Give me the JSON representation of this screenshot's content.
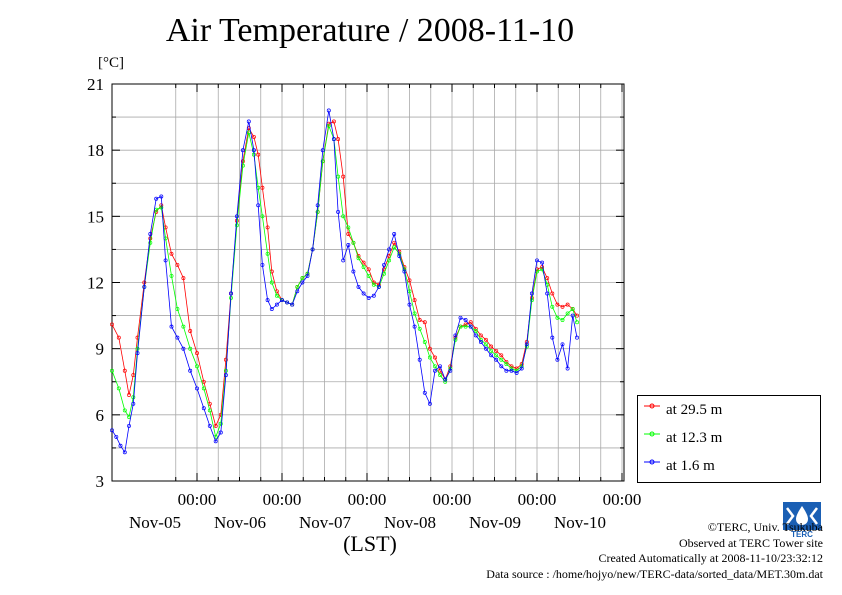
{
  "chart_data": {
    "type": "line",
    "title": "Air Temperature / 2008-11-10",
    "ylabel": "[°C]",
    "xlabel": "(LST)",
    "ylim": [
      3,
      21
    ],
    "yticks": [
      3,
      6,
      9,
      12,
      15,
      18,
      21
    ],
    "xlim": [
      0,
      6
    ],
    "x_unit": "days since Nov-04 18:00",
    "xtick_labels": [
      {
        "top": "00:00",
        "bottom": "Nov-05"
      },
      {
        "top": "00:00",
        "bottom": "Nov-06"
      },
      {
        "top": "00:00",
        "bottom": "Nov-07"
      },
      {
        "top": "00:00",
        "bottom": "Nov-08"
      },
      {
        "top": "00:00",
        "bottom": "Nov-09"
      },
      {
        "top": "00:00",
        "bottom": "Nov-10"
      }
    ],
    "grid": true,
    "legend_position": "right",
    "series": [
      {
        "name": "at 29.5 m",
        "color": "#ff0000",
        "marker": "circle",
        "values": [
          [
            0.0,
            10.1
          ],
          [
            0.08,
            9.5
          ],
          [
            0.15,
            8.0
          ],
          [
            0.2,
            6.9
          ],
          [
            0.25,
            7.8
          ],
          [
            0.3,
            9.5
          ],
          [
            0.38,
            12.0
          ],
          [
            0.45,
            14.0
          ],
          [
            0.52,
            15.2
          ],
          [
            0.58,
            15.5
          ],
          [
            0.63,
            14.5
          ],
          [
            0.7,
            13.3
          ],
          [
            0.77,
            12.8
          ],
          [
            0.84,
            12.2
          ],
          [
            0.92,
            9.8
          ],
          [
            1.0,
            8.8
          ],
          [
            1.08,
            7.5
          ],
          [
            1.15,
            6.5
          ],
          [
            1.22,
            5.5
          ],
          [
            1.28,
            6.0
          ],
          [
            1.34,
            8.5
          ],
          [
            1.4,
            11.5
          ],
          [
            1.47,
            14.8
          ],
          [
            1.54,
            17.5
          ],
          [
            1.61,
            19.0
          ],
          [
            1.67,
            18.6
          ],
          [
            1.72,
            17.8
          ],
          [
            1.77,
            16.3
          ],
          [
            1.83,
            14.5
          ],
          [
            1.88,
            12.5
          ],
          [
            1.94,
            11.6
          ],
          [
            2.0,
            11.2
          ],
          [
            2.06,
            11.1
          ],
          [
            2.12,
            11.0
          ],
          [
            2.18,
            11.8
          ],
          [
            2.24,
            12.2
          ],
          [
            2.3,
            12.4
          ],
          [
            2.36,
            13.5
          ],
          [
            2.42,
            15.2
          ],
          [
            2.48,
            17.5
          ],
          [
            2.55,
            19.2
          ],
          [
            2.61,
            19.3
          ],
          [
            2.66,
            18.5
          ],
          [
            2.72,
            16.8
          ],
          [
            2.78,
            14.2
          ],
          [
            2.84,
            13.8
          ],
          [
            2.9,
            13.2
          ],
          [
            2.96,
            12.9
          ],
          [
            3.02,
            12.6
          ],
          [
            3.08,
            12.0
          ],
          [
            3.14,
            11.9
          ],
          [
            3.2,
            12.6
          ],
          [
            3.26,
            13.2
          ],
          [
            3.32,
            13.8
          ],
          [
            3.38,
            13.4
          ],
          [
            3.44,
            12.7
          ],
          [
            3.5,
            12.1
          ],
          [
            3.56,
            11.2
          ],
          [
            3.62,
            10.3
          ],
          [
            3.68,
            10.2
          ],
          [
            3.74,
            9.0
          ],
          [
            3.8,
            8.6
          ],
          [
            3.86,
            8.0
          ],
          [
            3.92,
            7.6
          ],
          [
            3.98,
            8.2
          ],
          [
            4.04,
            9.5
          ],
          [
            4.1,
            10.0
          ],
          [
            4.16,
            10.1
          ],
          [
            4.22,
            10.2
          ],
          [
            4.28,
            9.9
          ],
          [
            4.34,
            9.6
          ],
          [
            4.4,
            9.4
          ],
          [
            4.46,
            9.1
          ],
          [
            4.52,
            8.9
          ],
          [
            4.58,
            8.7
          ],
          [
            4.64,
            8.4
          ],
          [
            4.7,
            8.2
          ],
          [
            4.76,
            8.1
          ],
          [
            4.82,
            8.3
          ],
          [
            4.88,
            9.3
          ],
          [
            4.94,
            11.3
          ],
          [
            5.0,
            12.6
          ],
          [
            5.06,
            12.7
          ],
          [
            5.12,
            12.2
          ],
          [
            5.18,
            11.5
          ],
          [
            5.24,
            11.0
          ],
          [
            5.3,
            10.9
          ],
          [
            5.36,
            11.0
          ],
          [
            5.42,
            10.8
          ],
          [
            5.47,
            10.5
          ]
        ]
      },
      {
        "name": "at 12.3 m",
        "color": "#00ff00",
        "marker": "circle",
        "values": [
          [
            0.0,
            8.0
          ],
          [
            0.08,
            7.2
          ],
          [
            0.15,
            6.2
          ],
          [
            0.2,
            5.9
          ],
          [
            0.25,
            6.8
          ],
          [
            0.3,
            9.0
          ],
          [
            0.38,
            11.8
          ],
          [
            0.45,
            13.8
          ],
          [
            0.52,
            15.3
          ],
          [
            0.58,
            15.4
          ],
          [
            0.63,
            14.0
          ],
          [
            0.7,
            12.3
          ],
          [
            0.77,
            10.8
          ],
          [
            0.84,
            10.0
          ],
          [
            0.92,
            9.0
          ],
          [
            1.0,
            8.2
          ],
          [
            1.08,
            7.2
          ],
          [
            1.15,
            6.2
          ],
          [
            1.22,
            5.0
          ],
          [
            1.28,
            5.6
          ],
          [
            1.34,
            8.0
          ],
          [
            1.4,
            11.3
          ],
          [
            1.47,
            14.6
          ],
          [
            1.54,
            17.3
          ],
          [
            1.61,
            18.8
          ],
          [
            1.67,
            17.8
          ],
          [
            1.72,
            16.3
          ],
          [
            1.77,
            15.0
          ],
          [
            1.83,
            13.3
          ],
          [
            1.88,
            12.0
          ],
          [
            1.94,
            11.4
          ],
          [
            2.0,
            11.2
          ],
          [
            2.06,
            11.1
          ],
          [
            2.12,
            11.0
          ],
          [
            2.18,
            11.8
          ],
          [
            2.24,
            12.2
          ],
          [
            2.3,
            12.4
          ],
          [
            2.36,
            13.5
          ],
          [
            2.42,
            15.2
          ],
          [
            2.48,
            17.5
          ],
          [
            2.55,
            19.1
          ],
          [
            2.61,
            18.5
          ],
          [
            2.66,
            16.8
          ],
          [
            2.72,
            15.0
          ],
          [
            2.78,
            14.5
          ],
          [
            2.84,
            13.8
          ],
          [
            2.9,
            13.1
          ],
          [
            2.96,
            12.7
          ],
          [
            3.02,
            12.3
          ],
          [
            3.08,
            11.9
          ],
          [
            3.14,
            11.8
          ],
          [
            3.2,
            12.4
          ],
          [
            3.26,
            13.0
          ],
          [
            3.32,
            13.6
          ],
          [
            3.38,
            13.3
          ],
          [
            3.44,
            12.6
          ],
          [
            3.5,
            11.6
          ],
          [
            3.56,
            10.6
          ],
          [
            3.62,
            9.9
          ],
          [
            3.68,
            9.3
          ],
          [
            3.74,
            8.6
          ],
          [
            3.8,
            8.2
          ],
          [
            3.86,
            7.8
          ],
          [
            3.92,
            7.5
          ],
          [
            3.98,
            8.1
          ],
          [
            4.04,
            9.4
          ],
          [
            4.1,
            10.0
          ],
          [
            4.16,
            10.0
          ],
          [
            4.22,
            10.0
          ],
          [
            4.28,
            9.8
          ],
          [
            4.34,
            9.4
          ],
          [
            4.4,
            9.2
          ],
          [
            4.46,
            8.9
          ],
          [
            4.52,
            8.7
          ],
          [
            4.58,
            8.5
          ],
          [
            4.64,
            8.3
          ],
          [
            4.7,
            8.1
          ],
          [
            4.76,
            8.0
          ],
          [
            4.82,
            8.2
          ],
          [
            4.88,
            9.1
          ],
          [
            4.94,
            11.2
          ],
          [
            5.0,
            12.5
          ],
          [
            5.06,
            12.6
          ],
          [
            5.12,
            11.9
          ],
          [
            5.18,
            10.9
          ],
          [
            5.24,
            10.4
          ],
          [
            5.3,
            10.3
          ],
          [
            5.36,
            10.6
          ],
          [
            5.42,
            10.8
          ],
          [
            5.47,
            10.2
          ]
        ]
      },
      {
        "name": "at 1.6 m",
        "color": "#0000ff",
        "marker": "circle",
        "values": [
          [
            0.0,
            5.3
          ],
          [
            0.05,
            5.0
          ],
          [
            0.1,
            4.6
          ],
          [
            0.15,
            4.3
          ],
          [
            0.2,
            5.5
          ],
          [
            0.25,
            6.5
          ],
          [
            0.3,
            8.8
          ],
          [
            0.38,
            11.8
          ],
          [
            0.45,
            14.2
          ],
          [
            0.52,
            15.8
          ],
          [
            0.58,
            15.9
          ],
          [
            0.63,
            13.0
          ],
          [
            0.7,
            10.0
          ],
          [
            0.77,
            9.5
          ],
          [
            0.84,
            9.0
          ],
          [
            0.92,
            8.0
          ],
          [
            1.0,
            7.2
          ],
          [
            1.08,
            6.3
          ],
          [
            1.15,
            5.5
          ],
          [
            1.22,
            4.8
          ],
          [
            1.28,
            5.2
          ],
          [
            1.34,
            7.8
          ],
          [
            1.4,
            11.5
          ],
          [
            1.47,
            15.0
          ],
          [
            1.54,
            18.0
          ],
          [
            1.61,
            19.3
          ],
          [
            1.67,
            18.0
          ],
          [
            1.72,
            15.5
          ],
          [
            1.77,
            12.8
          ],
          [
            1.83,
            11.2
          ],
          [
            1.88,
            10.8
          ],
          [
            1.94,
            11.0
          ],
          [
            2.0,
            11.2
          ],
          [
            2.06,
            11.1
          ],
          [
            2.12,
            11.0
          ],
          [
            2.18,
            11.6
          ],
          [
            2.24,
            12.0
          ],
          [
            2.3,
            12.3
          ],
          [
            2.36,
            13.5
          ],
          [
            2.42,
            15.5
          ],
          [
            2.48,
            18.0
          ],
          [
            2.55,
            19.8
          ],
          [
            2.61,
            18.5
          ],
          [
            2.66,
            15.2
          ],
          [
            2.72,
            13.0
          ],
          [
            2.78,
            13.7
          ],
          [
            2.84,
            12.5
          ],
          [
            2.9,
            11.8
          ],
          [
            2.96,
            11.5
          ],
          [
            3.02,
            11.3
          ],
          [
            3.08,
            11.4
          ],
          [
            3.14,
            11.8
          ],
          [
            3.2,
            12.8
          ],
          [
            3.26,
            13.5
          ],
          [
            3.32,
            14.2
          ],
          [
            3.38,
            13.2
          ],
          [
            3.44,
            12.5
          ],
          [
            3.5,
            11.0
          ],
          [
            3.56,
            10.0
          ],
          [
            3.62,
            8.5
          ],
          [
            3.68,
            7.0
          ],
          [
            3.74,
            6.5
          ],
          [
            3.8,
            8.0
          ],
          [
            3.86,
            8.2
          ],
          [
            3.92,
            7.6
          ],
          [
            3.98,
            8.0
          ],
          [
            4.04,
            9.6
          ],
          [
            4.1,
            10.4
          ],
          [
            4.16,
            10.3
          ],
          [
            4.22,
            10.0
          ],
          [
            4.28,
            9.6
          ],
          [
            4.34,
            9.3
          ],
          [
            4.4,
            9.0
          ],
          [
            4.46,
            8.7
          ],
          [
            4.52,
            8.5
          ],
          [
            4.58,
            8.2
          ],
          [
            4.64,
            8.0
          ],
          [
            4.7,
            8.0
          ],
          [
            4.76,
            7.9
          ],
          [
            4.82,
            8.1
          ],
          [
            4.88,
            9.2
          ],
          [
            4.94,
            11.5
          ],
          [
            5.0,
            13.0
          ],
          [
            5.06,
            12.9
          ],
          [
            5.12,
            11.5
          ],
          [
            5.18,
            9.5
          ],
          [
            5.24,
            8.5
          ],
          [
            5.3,
            9.2
          ],
          [
            5.36,
            8.1
          ],
          [
            5.42,
            10.5
          ],
          [
            5.47,
            9.5
          ]
        ]
      }
    ]
  },
  "credits": {
    "copyright": "©TERC, Univ. Tsukuba",
    "observed": "Observed at TERC Tower site",
    "created": "Created Automatically at 2008-11-10/23:32:12",
    "source": "Data source : /home/hojyo/new/TERC-data/sorted_data/MET.30m.dat"
  },
  "logo_text": "TERC"
}
